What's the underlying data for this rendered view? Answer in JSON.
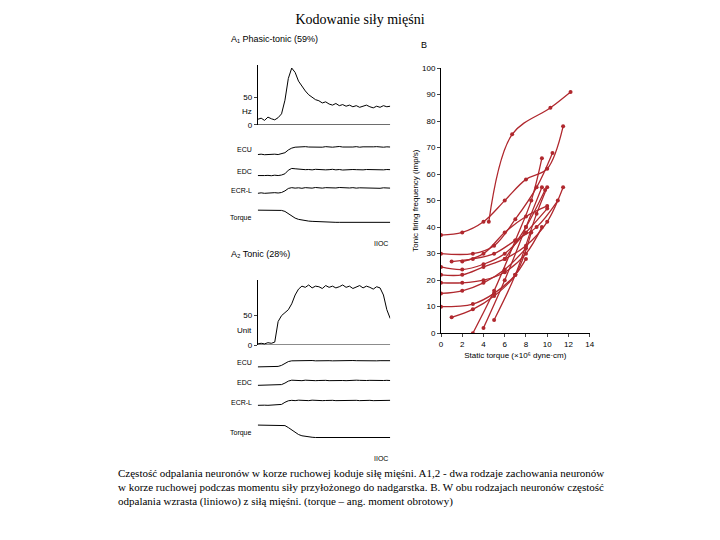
{
  "title": "Kodowanie siły mięśni",
  "caption": "Częstość odpalania neuronów w korze ruchowej koduje siłę mięśni. A1,2 - dwa rodzaje zachowania neuronów w korze ruchowej podczas momentu siły przyłożonego do nadgarstka. B. W obu rodzajach neuronów częstość odpalania wzrasta (liniowo) z siłą mięśni. (torque – ang. moment obrotowy)",
  "chart_data": [
    {
      "type": "line",
      "title": "A₁ Phasic-tonic (59%)",
      "color": "#000000",
      "tick_labels": "y",
      "x": [
        0,
        1,
        2,
        3,
        4,
        5,
        6,
        7,
        8,
        9,
        10,
        11,
        12,
        13,
        14,
        15,
        16,
        17,
        18,
        19,
        20,
        21,
        22,
        23,
        24,
        25,
        26,
        27,
        28,
        29,
        30,
        31,
        32,
        33,
        34,
        35,
        36,
        37,
        38,
        39
      ],
      "xlim": [
        0,
        39
      ],
      "annotations": [
        {
          "text": "IIOC"
        }
      ],
      "series": [
        {
          "name": "Hz",
          "ylim": [
            0,
            110
          ],
          "yticks": [
            0,
            50
          ],
          "values": [
            10,
            12,
            8,
            14,
            11,
            9,
            13,
            20,
            45,
            85,
            104,
            96,
            80,
            70,
            62,
            55,
            50,
            46,
            44,
            40,
            42,
            38,
            36,
            39,
            35,
            37,
            34,
            36,
            33,
            35,
            32,
            34,
            36,
            33,
            31,
            34,
            32,
            35,
            33,
            34
          ]
        },
        {
          "name": "ECU",
          "ylim": [
            0,
            10
          ],
          "values": [
            2,
            2.2,
            1.9,
            2.1,
            2,
            2.2,
            2,
            2.3,
            3,
            4.5,
            5.5,
            6,
            6.2,
            6,
            6.3,
            6.1,
            6,
            6.2,
            6.1,
            6,
            6.3,
            6.1,
            6,
            6.2,
            6.4,
            6.1,
            6,
            6.2,
            6.1,
            6.3,
            6,
            6.2,
            6.1,
            6,
            6.2,
            6.3,
            6.1,
            6,
            6.2,
            6.1
          ]
        },
        {
          "name": "EDC",
          "ylim": [
            0,
            10
          ],
          "values": [
            3,
            3.2,
            3,
            3.1,
            2.9,
            3.2,
            3,
            3.3,
            4,
            6,
            7,
            6.8,
            6.5,
            6.6,
            6.3,
            6.4,
            6.2,
            6.5,
            6.3,
            6.4,
            6.2,
            6.3,
            6.5,
            6.2,
            6.4,
            6.1,
            6.3,
            6.2,
            6.4,
            6.3,
            6.1,
            6.2,
            6.4,
            6.3,
            6.2,
            6.1,
            6.3,
            6.2,
            6.4,
            6.3
          ]
        },
        {
          "name": "ECR-L",
          "ylim": [
            0,
            10
          ],
          "values": [
            3,
            3.3,
            3,
            3.2,
            3.1,
            3.4,
            3.2,
            3.5,
            4.5,
            6,
            6.5,
            6.2,
            6.4,
            6.1,
            6.5,
            6.3,
            6.2,
            6.6,
            6.3,
            6.2,
            6.5,
            6.4,
            6.2,
            6.3,
            6.6,
            6.4,
            6.1,
            6.3,
            6.5,
            6.2,
            6.4,
            6.3,
            6.5,
            6.2,
            6.4,
            6.3,
            6.1,
            6.4,
            6.3,
            6.2
          ]
        },
        {
          "name": "Torque",
          "ylim": [
            0,
            10
          ],
          "values": [
            8,
            8,
            8,
            8,
            8,
            8,
            8,
            7.9,
            7.5,
            6.5,
            5.5,
            4.8,
            4.3,
            4,
            3.8,
            3.6,
            3.5,
            3.4,
            3.3,
            3.3,
            3.2,
            3.2,
            3.2,
            3.1,
            3.1,
            3.1,
            3.1,
            3.1,
            3.1,
            3.1,
            3.1,
            3.1,
            3.1,
            3.1,
            3.1,
            3.1,
            3.1,
            3.1,
            3.1,
            3.1
          ]
        }
      ]
    },
    {
      "type": "line",
      "title": "A₂ Tonic (28%)",
      "color": "#000000",
      "tick_labels": "y",
      "x": [
        0,
        1,
        2,
        3,
        4,
        5,
        6,
        7,
        8,
        9,
        10,
        11,
        12,
        13,
        14,
        15,
        16,
        17,
        18,
        19,
        20,
        21,
        22,
        23,
        24,
        25,
        26,
        27,
        28,
        29,
        30,
        31,
        32,
        33,
        34,
        35,
        36,
        37,
        38,
        39
      ],
      "xlim": [
        0,
        39
      ],
      "annotations": [
        {
          "text": "IIOC"
        }
      ],
      "series": [
        {
          "name": "Unit",
          "ylim": [
            0,
            110
          ],
          "yticks": [
            0,
            50
          ],
          "values": [
            2,
            3,
            2,
            4,
            3,
            5,
            40,
            50,
            55,
            60,
            70,
            85,
            95,
            100,
            98,
            102,
            97,
            100,
            99,
            96,
            101,
            98,
            100,
            97,
            99,
            102,
            98,
            100,
            96,
            99,
            101,
            97,
            100,
            98,
            95,
            99,
            97,
            85,
            60,
            45
          ]
        },
        {
          "name": "ECU",
          "ylim": [
            0,
            10
          ],
          "values": [
            2,
            2.1,
            2,
            2.2,
            2,
            2.1,
            2.3,
            3,
            4.5,
            5.5,
            6,
            6.1,
            6,
            6.2,
            6,
            6.1,
            6.2,
            6,
            6.1,
            6,
            6.2,
            6.1,
            6,
            6.1,
            6.2,
            6,
            6.1,
            6,
            6.2,
            6.1,
            6,
            6.1,
            6,
            6.2,
            6.1,
            6,
            6.1,
            6.2,
            6,
            6.1
          ]
        },
        {
          "name": "EDC",
          "ylim": [
            0,
            10
          ],
          "values": [
            3,
            3.1,
            3,
            3.2,
            3,
            3.1,
            3.3,
            3.5,
            4.5,
            5.8,
            6.4,
            6.2,
            6.3,
            6.1,
            6.4,
            6.2,
            6.3,
            6.1,
            6.2,
            6.4,
            6.3,
            6.1,
            6.2,
            6.3,
            6.4,
            6.2,
            6.1,
            6.3,
            6.2,
            6.4,
            6.3,
            6.1,
            6.2,
            6.3,
            6.2,
            6.4,
            6.1,
            6.2,
            6.3,
            6.2
          ]
        },
        {
          "name": "ECR-L",
          "ylim": [
            0,
            10
          ],
          "values": [
            3,
            3.2,
            3.1,
            3,
            3.2,
            3.1,
            3.3,
            3.6,
            5,
            6,
            6.3,
            6.1,
            6.4,
            6.2,
            6.3,
            6.1,
            6.4,
            6.2,
            6.3,
            6.1,
            6.2,
            6.4,
            6.3,
            6.1,
            6.2,
            6.3,
            6.1,
            6.4,
            6.2,
            6.3,
            6.1,
            6.2,
            6.4,
            6.3,
            6.1,
            6.2,
            6.3,
            6.2,
            6.1,
            6.3
          ]
        },
        {
          "name": "Torque",
          "ylim": [
            0,
            10
          ],
          "values": [
            8,
            8,
            8,
            8,
            8,
            8,
            8,
            8,
            7.8,
            7,
            6,
            5,
            4.2,
            3.7,
            3.4,
            3.2,
            3.1,
            3,
            3,
            3,
            3,
            3,
            3,
            3,
            3,
            3,
            3,
            3,
            3,
            3,
            3,
            3,
            3,
            3,
            3,
            3,
            3,
            3,
            3,
            3
          ]
        }
      ]
    },
    {
      "type": "line",
      "title": "B",
      "color": "#b0282e",
      "marker": "circle",
      "line_style": "solid",
      "xlabel": "Static torque (×10⁶ dyne·cm)",
      "ylabel": "Tonic firing frequency (imp/s)",
      "xlim": [
        0,
        14
      ],
      "xticks": [
        0,
        2,
        4,
        6,
        8,
        10,
        12,
        14
      ],
      "ylim": [
        0,
        100
      ],
      "yticks": [
        0,
        10,
        20,
        30,
        40,
        50,
        60,
        70,
        80,
        90,
        100
      ],
      "series": [
        {
          "x": [
            4.5,
            6.7,
            10.3,
            12.2
          ],
          "values": [
            42,
            75,
            85,
            91
          ]
        },
        {
          "x": [
            0,
            2,
            4,
            6,
            8,
            10,
            11.5
          ],
          "values": [
            37,
            38,
            42,
            50,
            58,
            62,
            78
          ]
        },
        {
          "x": [
            0,
            3,
            5,
            7,
            9,
            10.5
          ],
          "values": [
            30,
            30,
            33,
            43,
            55,
            68
          ]
        },
        {
          "x": [
            1,
            3,
            5,
            7,
            9,
            11
          ],
          "values": [
            27,
            28,
            30,
            35,
            40,
            50
          ]
        },
        {
          "x": [
            0,
            2,
            4,
            6,
            8,
            10
          ],
          "values": [
            25,
            24,
            26,
            30,
            38,
            47
          ]
        },
        {
          "x": [
            0,
            2,
            4,
            6,
            8,
            10,
            11.5
          ],
          "values": [
            22,
            22,
            25,
            28,
            33,
            42,
            55
          ]
        },
        {
          "x": [
            0,
            2,
            4,
            6,
            8,
            9.5
          ],
          "values": [
            19,
            19,
            20,
            23,
            30,
            40
          ]
        },
        {
          "x": [
            0,
            2,
            4,
            6,
            8
          ],
          "values": [
            15,
            16,
            19,
            24,
            32
          ]
        },
        {
          "x": [
            0,
            3,
            5,
            7,
            8
          ],
          "values": [
            10,
            11,
            15,
            22,
            28
          ]
        },
        {
          "x": [
            1,
            3,
            5,
            7,
            8.5
          ],
          "values": [
            6,
            9,
            14,
            22,
            38
          ]
        },
        {
          "x": [
            3,
            5,
            7,
            8.5,
            9.5
          ],
          "values": [
            0,
            16,
            35,
            50,
            66
          ]
        },
        {
          "x": [
            4,
            6,
            8,
            9.5
          ],
          "values": [
            2,
            20,
            40,
            55
          ]
        },
        {
          "x": [
            5,
            7,
            9,
            10
          ],
          "values": [
            5,
            22,
            45,
            55
          ]
        },
        {
          "x": [
            2,
            4,
            6,
            8,
            10
          ],
          "values": [
            27,
            30,
            38,
            44,
            48
          ]
        },
        {
          "x": [
            6,
            8,
            9.8
          ],
          "values": [
            28,
            40,
            54
          ]
        }
      ]
    }
  ]
}
